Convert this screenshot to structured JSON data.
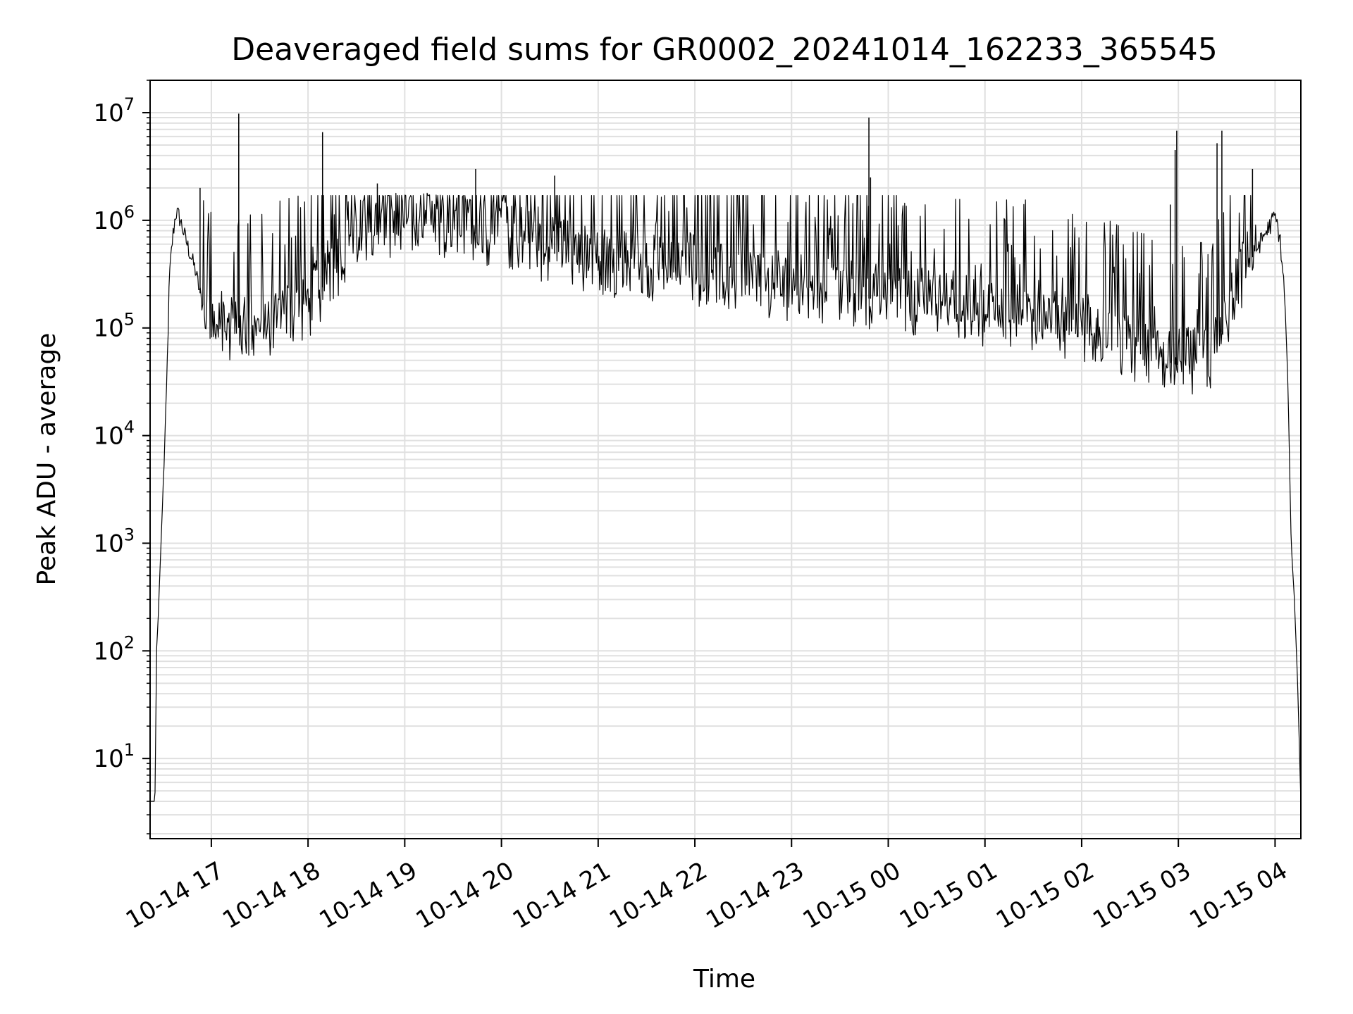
{
  "chart_data": {
    "type": "line",
    "title": "Deaveraged field sums for GR0002_20241014_162233_365545",
    "xlabel": "Time",
    "ylabel": "Peak ADU - average",
    "yscale": "log",
    "ylim": [
      1.8,
      20000000
    ],
    "xlim": [
      "2024-10-14 16:22",
      "2024-10-15 04:16"
    ],
    "grid": true,
    "line_color": "#000000",
    "grid_color": "#e0e0e0",
    "x_ticks": [
      "10-14 17",
      "10-14 18",
      "10-14 19",
      "10-14 20",
      "10-14 21",
      "10-14 22",
      "10-14 23",
      "10-15 00",
      "10-15 01",
      "10-15 02",
      "10-15 03",
      "10-15 04"
    ],
    "y_ticks": [
      {
        "value": 10,
        "base": "10",
        "exp": "1"
      },
      {
        "value": 100,
        "base": "10",
        "exp": "2"
      },
      {
        "value": 1000,
        "base": "10",
        "exp": "3"
      },
      {
        "value": 10000,
        "base": "10",
        "exp": "4"
      },
      {
        "value": 100000,
        "base": "10",
        "exp": "5"
      },
      {
        "value": 1000000,
        "base": "10",
        "exp": "6"
      },
      {
        "value": 10000000,
        "base": "10",
        "exp": "7"
      }
    ],
    "series": [
      {
        "x": [
          "2024-10-14 16:22",
          "2024-10-14 16:25",
          "2024-10-14 16:26",
          "2024-10-14 16:27",
          "2024-10-14 16:28",
          "2024-10-14 16:30",
          "2024-10-14 16:32",
          "2024-10-14 16:34",
          "2024-10-14 16:36",
          "2024-10-14 16:38",
          "2024-10-14 16:40",
          "2024-10-14 16:45",
          "2024-10-14 16:50",
          "2024-10-14 16:55",
          "2024-10-14 17:00",
          "2024-10-14 17:10",
          "2024-10-14 17:20",
          "2024-10-14 17:30",
          "2024-10-14 17:40",
          "2024-10-14 17:50",
          "2024-10-14 18:00",
          "2024-10-14 18:30",
          "2024-10-14 19:00",
          "2024-10-14 19:30",
          "2024-10-14 20:00",
          "2024-10-14 20:30",
          "2024-10-14 21:00",
          "2024-10-14 21:30",
          "2024-10-14 22:00",
          "2024-10-14 22:30",
          "2024-10-14 23:00",
          "2024-10-14 23:30",
          "2024-10-15 00:00",
          "2024-10-15 00:30",
          "2024-10-15 01:00",
          "2024-10-15 01:30",
          "2024-10-15 02:00",
          "2024-10-15 02:30",
          "2024-10-15 03:00",
          "2024-10-15 03:20",
          "2024-10-15 03:30",
          "2024-10-15 03:40",
          "2024-10-15 03:50",
          "2024-10-15 04:00",
          "2024-10-15 04:03",
          "2024-10-15 04:06",
          "2024-10-15 04:08",
          "2024-10-15 04:10",
          "2024-10-15 04:12",
          "2024-10-15 04:14",
          "2024-10-15 04:16"
        ],
        "values": [
          4,
          4,
          100,
          200,
          500,
          3000,
          20000,
          300000,
          700000,
          1200000,
          1100000,
          600000,
          350000,
          150000,
          100000,
          100000,
          100000,
          100000,
          110000,
          140000,
          150000,
          700000,
          900000,
          800000,
          700000,
          500000,
          400000,
          350000,
          300000,
          260000,
          230000,
          200000,
          180000,
          160000,
          130000,
          110000,
          90000,
          60000,
          45000,
          50000,
          120000,
          300000,
          600000,
          1100000,
          700000,
          200000,
          30000,
          1000,
          300,
          50,
          4
        ]
      }
    ],
    "spikes": [
      {
        "x": "2024-10-14 16:53",
        "value": 2000000
      },
      {
        "x": "2024-10-14 17:17",
        "value": 9800000
      },
      {
        "x": "2024-10-14 18:09",
        "value": 6600000
      },
      {
        "x": "2024-10-14 18:43",
        "value": 2200000
      },
      {
        "x": "2024-10-14 19:44",
        "value": 3000000
      },
      {
        "x": "2024-10-14 20:33",
        "value": 2600000
      },
      {
        "x": "2024-10-14 23:48",
        "value": 9000000
      },
      {
        "x": "2024-10-14 23:49",
        "value": 2500000
      },
      {
        "x": "2024-10-15 02:55",
        "value": 1400000
      },
      {
        "x": "2024-10-15 02:58",
        "value": 4500000
      },
      {
        "x": "2024-10-15 02:59",
        "value": 6800000
      },
      {
        "x": "2024-10-15 03:24",
        "value": 5200000
      },
      {
        "x": "2024-10-15 03:27",
        "value": 6800000
      },
      {
        "x": "2024-10-15 03:46",
        "value": 3000000
      }
    ]
  }
}
